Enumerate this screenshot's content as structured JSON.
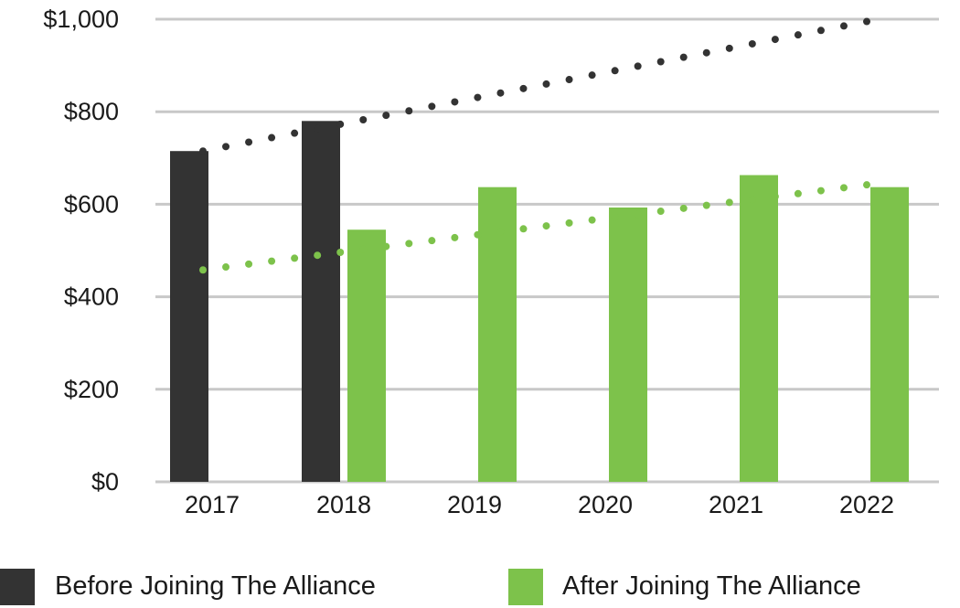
{
  "chart_data": {
    "type": "bar",
    "categories": [
      "2017",
      "2018",
      "2019",
      "2020",
      "2021",
      "2022"
    ],
    "ylim": [
      0,
      1000
    ],
    "yticks": [
      {
        "value": 0,
        "label": "$0"
      },
      {
        "value": 200,
        "label": "$200"
      },
      {
        "value": 400,
        "label": "$400"
      },
      {
        "value": 600,
        "label": "$600"
      },
      {
        "value": 800,
        "label": "$800"
      },
      {
        "value": 1000,
        "label": "$1,000"
      }
    ],
    "grid": true,
    "legend_position": "bottom",
    "series": [
      {
        "name": "Before Joining The Alliance",
        "color": "#333333",
        "values": [
          715,
          780,
          null,
          null,
          null,
          null
        ],
        "trendline": {
          "style": "dotted",
          "start": [
            2017,
            715
          ],
          "end": [
            2022,
            995
          ]
        }
      },
      {
        "name": "After Joining The Alliance",
        "color": "#7dc24b",
        "values": [
          null,
          545,
          637,
          593,
          663,
          637
        ],
        "trendline": {
          "style": "dotted",
          "start": [
            2017,
            458
          ],
          "end": [
            2022,
            642
          ]
        }
      }
    ]
  }
}
